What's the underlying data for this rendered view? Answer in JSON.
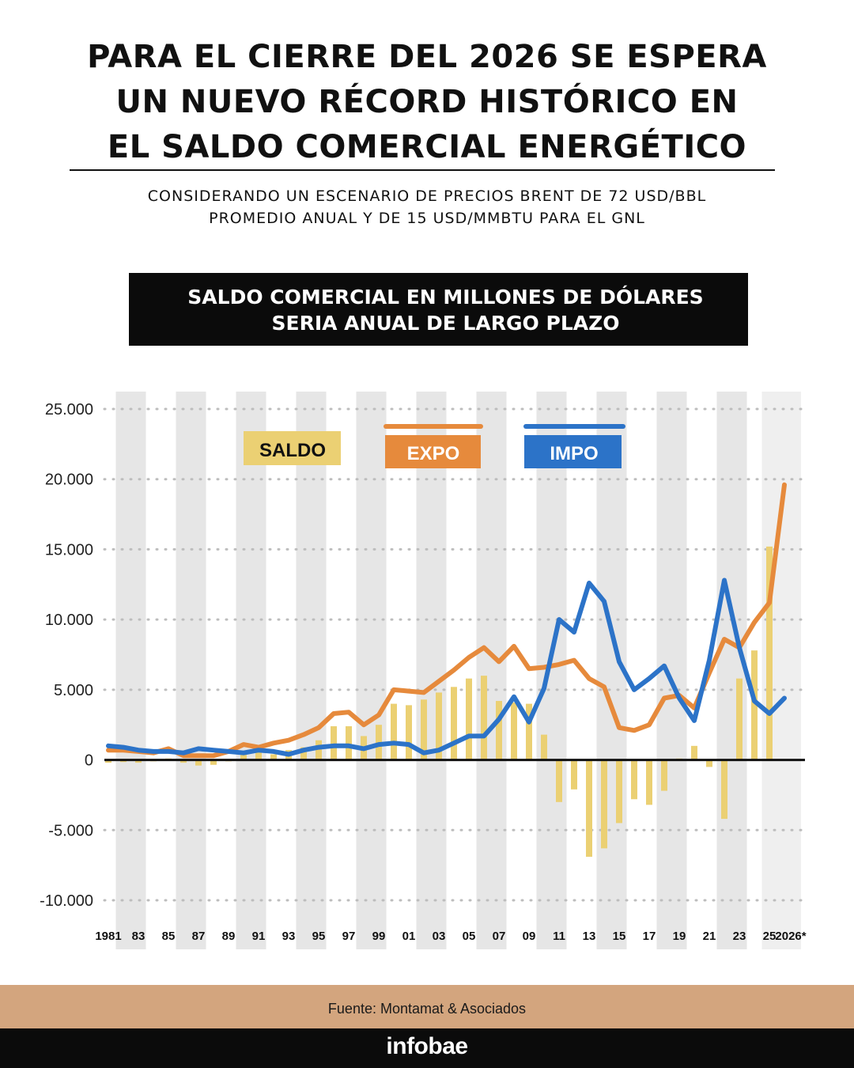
{
  "header": {
    "title_lines": [
      "PARA EL CIERRE DEL 2026 SE ESPERA",
      "UN NUEVO RÉCORD HISTÓRICO EN",
      "EL SALDO COMERCIAL ENERGÉTICO"
    ],
    "subtitle_lines": [
      "CONSIDERANDO UN ESCENARIO DE PRECIOS BRENT DE 72 USD/BBL",
      "PROMEDIO ANUAL Y DE 15 USD/MMBTU PARA EL GNL"
    ]
  },
  "chart_header": {
    "line1": "SALDO COMERCIAL EN MILLONES DE DÓLARES",
    "line2": "SERIA ANUAL DE LARGO PLAZO"
  },
  "chart_data": {
    "type": "bar+line",
    "x": [
      1981,
      1982,
      1983,
      1984,
      1985,
      1986,
      1987,
      1988,
      1989,
      1990,
      1991,
      1992,
      1993,
      1994,
      1995,
      1996,
      1997,
      1998,
      1999,
      2000,
      2001,
      2002,
      2003,
      2004,
      2005,
      2006,
      2007,
      2008,
      2009,
      2010,
      2011,
      2012,
      2013,
      2014,
      2015,
      2016,
      2017,
      2018,
      2019,
      2020,
      2021,
      2022,
      2023,
      2024,
      2025,
      2026
    ],
    "x_tick_labels": [
      "1981",
      "",
      "83",
      "",
      "85",
      "",
      "87",
      "",
      "89",
      "",
      "91",
      "",
      "93",
      "",
      "95",
      "",
      "97",
      "",
      "99",
      "",
      "01",
      "",
      "03",
      "",
      "05",
      "",
      "07",
      "",
      "09",
      "",
      "11",
      "",
      "13",
      "",
      "15",
      "",
      "17",
      "",
      "19",
      "",
      "21",
      "",
      "23",
      "",
      "25",
      "2026*"
    ],
    "series": [
      {
        "name": "SALDO",
        "type": "bar",
        "color": "#ebd073",
        "values": [
          -200,
          -150,
          -200,
          -100,
          100,
          -200,
          -400,
          -350,
          -100,
          400,
          600,
          400,
          700,
          900,
          1400,
          2400,
          2400,
          1700,
          2500,
          4000,
          3900,
          4300,
          4800,
          5200,
          5800,
          6000,
          4200,
          4100,
          4000,
          1800,
          -3000,
          -2100,
          -6900,
          -6300,
          -4500,
          -2800,
          -3200,
          -2200,
          100,
          1000,
          -500,
          -4200,
          5800,
          7800,
          15200,
          0
        ]
      },
      {
        "name": "EXPO",
        "type": "line",
        "color": "#e68a3c",
        "values": [
          700,
          700,
          600,
          500,
          800,
          300,
          300,
          300,
          600,
          1100,
          900,
          1200,
          1400,
          1800,
          2300,
          3300,
          3400,
          2500,
          3200,
          5000,
          4900,
          4800,
          5600,
          6400,
          7300,
          8000,
          7000,
          8100,
          6500,
          6600,
          6800,
          7100,
          5800,
          5200,
          2300,
          2100,
          2500,
          4400,
          4600,
          3700,
          6200,
          8600,
          8000,
          9800,
          11200,
          19600
        ]
      },
      {
        "name": "IMPO",
        "type": "line",
        "color": "#2c73c8",
        "values": [
          1000,
          900,
          700,
          600,
          600,
          500,
          800,
          700,
          600,
          500,
          700,
          600,
          400,
          700,
          900,
          1000,
          1000,
          800,
          1100,
          1200,
          1100,
          500,
          700,
          1200,
          1700,
          1700,
          2900,
          4500,
          2700,
          5100,
          10000,
          9100,
          12600,
          11300,
          7000,
          5000,
          5800,
          6700,
          4400,
          2800,
          7100,
          12800,
          8000,
          4200,
          3300,
          4400
        ]
      }
    ],
    "legend": [
      {
        "label": "SALDO"
      },
      {
        "label": "EXPO"
      },
      {
        "label": "IMPO"
      }
    ],
    "ylim": [
      -10000,
      25000
    ],
    "y_ticks": [
      -10000,
      -5000,
      0,
      5000,
      10000,
      15000,
      20000,
      25000
    ],
    "y_tick_labels": [
      "-10.000",
      "-5.000",
      "0",
      "5.000",
      "10.000",
      "15.000",
      "20.000",
      "25.000"
    ],
    "grid": true,
    "legend_position": "top-left"
  },
  "footer": {
    "source": "Fuente: Montamat & Asociados",
    "brand": "infobae"
  },
  "colors": {
    "band": "#e6e6e6",
    "band_last": "#efefef",
    "grid": "#bdbdbd",
    "saldo_legend_bg": "#ebd073",
    "expo_legend_bg": "#e68a3c",
    "impo_legend_bg": "#2c73c8"
  }
}
